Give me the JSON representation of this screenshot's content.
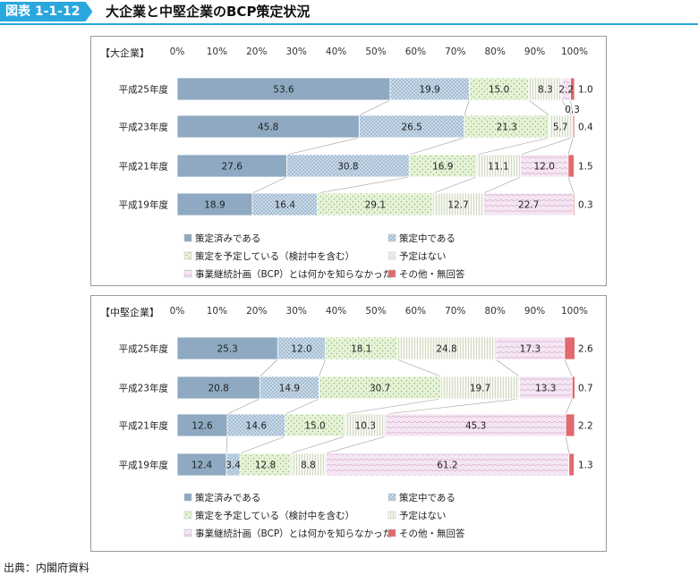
{
  "header": {
    "tag": "図表 1-1-12",
    "title": "大企業と中堅企業のBCP策定状況"
  },
  "source": "出典：内閣府資料",
  "colors": {
    "s0": "#8ea9c1",
    "s1": "#c9dbe9",
    "s2": "#e6f2d8",
    "s3": "#f7f7f2",
    "s4": "#f4e6f2",
    "s5": "#e06a6f"
  },
  "chart_data": [
    {
      "type": "bar",
      "stacked": true,
      "orientation": "horizontal",
      "title": "【大企業】",
      "x_ticks": [
        "0%",
        "10%",
        "20%",
        "30%",
        "40%",
        "50%",
        "60%",
        "70%",
        "80%",
        "90%",
        "100%"
      ],
      "xlim": [
        0,
        100
      ],
      "categories": [
        "平成25年度",
        "平成23年度",
        "平成21年度",
        "平成19年度"
      ],
      "series": [
        {
          "name": "策定済みである",
          "values": [
            53.6,
            45.8,
            27.6,
            18.9
          ]
        },
        {
          "name": "策定中である",
          "values": [
            19.9,
            26.5,
            30.8,
            16.4
          ]
        },
        {
          "name": "策定を予定している（検討中を含む）",
          "values": [
            15.0,
            21.3,
            16.9,
            29.1
          ]
        },
        {
          "name": "予定はない",
          "values": [
            8.3,
            5.7,
            11.1,
            12.7
          ]
        },
        {
          "name": "事業継続計画（BCP）とは何かを知らなかった",
          "values": [
            2.2,
            0.3,
            12.0,
            22.7
          ]
        },
        {
          "name": "その他・無回答",
          "values": [
            1.0,
            0.4,
            1.5,
            0.3
          ]
        }
      ],
      "labels": [
        [
          "53.6",
          "19.9",
          "15.0",
          "8.3",
          "2.2",
          "1.0"
        ],
        [
          "45.8",
          "26.5",
          "21.3",
          "5.7",
          "0.3",
          "0.4"
        ],
        [
          "27.6",
          "30.8",
          "16.9",
          "11.1",
          "12.0",
          "1.5"
        ],
        [
          "18.9",
          "16.4",
          "29.1",
          "12.7",
          "22.7",
          "0.3"
        ]
      ],
      "legend": [
        "策定済みである",
        "策定中である",
        "策定を予定している（検討中を含む）",
        "予定はない",
        "事業継続計画（BCP）とは何かを知らなかった",
        "その他・無回答"
      ],
      "legend_position": "bottom",
      "grid": false
    },
    {
      "type": "bar",
      "stacked": true,
      "orientation": "horizontal",
      "title": "【中堅企業】",
      "x_ticks": [
        "0%",
        "10%",
        "20%",
        "30%",
        "40%",
        "50%",
        "60%",
        "70%",
        "80%",
        "90%",
        "100%"
      ],
      "xlim": [
        0,
        100
      ],
      "categories": [
        "平成25年度",
        "平成23年度",
        "平成21年度",
        "平成19年度"
      ],
      "series": [
        {
          "name": "策定済みである",
          "values": [
            25.3,
            20.8,
            12.6,
            12.4
          ]
        },
        {
          "name": "策定中である",
          "values": [
            12.0,
            14.9,
            14.6,
            3.4
          ]
        },
        {
          "name": "策定を予定している（検討中を含む）",
          "values": [
            18.1,
            30.7,
            15.0,
            12.8
          ]
        },
        {
          "name": "予定はない",
          "values": [
            24.8,
            19.7,
            10.3,
            8.8
          ]
        },
        {
          "name": "事業継続計画（BCP）とは何かを知らなかった",
          "values": [
            17.3,
            13.3,
            45.3,
            61.2
          ]
        },
        {
          "name": "その他・無回答",
          "values": [
            2.6,
            0.7,
            2.2,
            1.3
          ]
        }
      ],
      "labels": [
        [
          "25.3",
          "12.0",
          "18.1",
          "24.8",
          "17.3",
          "2.6"
        ],
        [
          "20.8",
          "14.9",
          "30.7",
          "19.7",
          "13.3",
          "0.7"
        ],
        [
          "12.6",
          "14.6",
          "15.0",
          "10.3",
          "45.3",
          "2.2"
        ],
        [
          "12.4",
          "3.4",
          "12.8",
          "8.8",
          "61.2",
          "1.3"
        ]
      ],
      "legend": [
        "策定済みである",
        "策定中である",
        "策定を予定している（検討中を含む）",
        "予定はない",
        "事業継続計画（BCP）とは何かを知らなかった",
        "その他・無回答"
      ],
      "legend_position": "bottom",
      "grid": false
    }
  ]
}
